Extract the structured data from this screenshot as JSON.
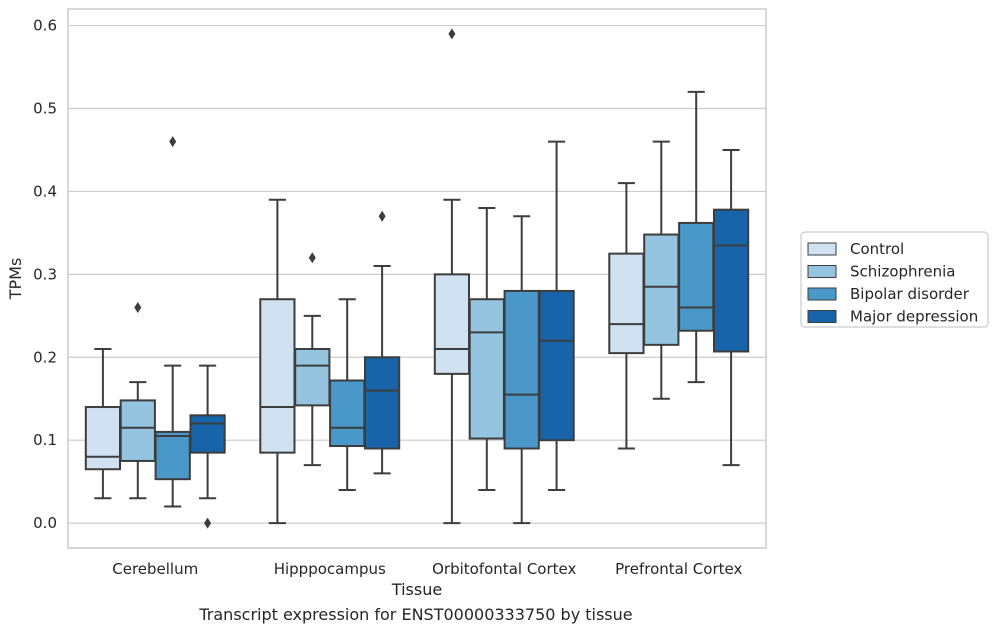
{
  "caption": "Transcript expression for ENST00000333750 by tissue",
  "chart_data": {
    "type": "box",
    "xlabel": "Tissue",
    "ylabel": "TPMs",
    "ylim": [
      -0.03,
      0.62
    ],
    "yticks": [
      0.0,
      0.1,
      0.2,
      0.3,
      0.4,
      0.5,
      0.6
    ],
    "ytick_labels": [
      "0.0",
      "0.1",
      "0.2",
      "0.3",
      "0.4",
      "0.5",
      "0.6"
    ],
    "grid": "horizontal",
    "legend_position": "right",
    "categories": [
      "Cerebellum",
      "Hipppocampus",
      "Orbitofontal Cortex",
      "Prefrontal Cortex"
    ],
    "series": [
      {
        "name": "Control",
        "color": "#d0e1f2",
        "boxes": [
          {
            "whisker_low": 0.03,
            "q1": 0.065,
            "median": 0.08,
            "q3": 0.14,
            "whisker_high": 0.21,
            "outliers": []
          },
          {
            "whisker_low": 0.0,
            "q1": 0.085,
            "median": 0.14,
            "q3": 0.27,
            "whisker_high": 0.39,
            "outliers": []
          },
          {
            "whisker_low": 0.0,
            "q1": 0.18,
            "median": 0.21,
            "q3": 0.3,
            "whisker_high": 0.39,
            "outliers": [
              0.59
            ]
          },
          {
            "whisker_low": 0.09,
            "q1": 0.205,
            "median": 0.24,
            "q3": 0.325,
            "whisker_high": 0.41,
            "outliers": []
          }
        ]
      },
      {
        "name": "Schizophrenia",
        "color": "#94c4df",
        "boxes": [
          {
            "whisker_low": 0.03,
            "q1": 0.075,
            "median": 0.115,
            "q3": 0.148,
            "whisker_high": 0.17,
            "outliers": [
              0.26
            ]
          },
          {
            "whisker_low": 0.07,
            "q1": 0.142,
            "median": 0.19,
            "q3": 0.21,
            "whisker_high": 0.25,
            "outliers": [
              0.32
            ]
          },
          {
            "whisker_low": 0.04,
            "q1": 0.102,
            "median": 0.23,
            "q3": 0.27,
            "whisker_high": 0.38,
            "outliers": []
          },
          {
            "whisker_low": 0.15,
            "q1": 0.215,
            "median": 0.285,
            "q3": 0.348,
            "whisker_high": 0.46,
            "outliers": []
          }
        ]
      },
      {
        "name": "Bipolar disorder",
        "color": "#4a98c9",
        "boxes": [
          {
            "whisker_low": 0.02,
            "q1": 0.053,
            "median": 0.105,
            "q3": 0.11,
            "whisker_high": 0.19,
            "outliers": [
              0.46
            ]
          },
          {
            "whisker_low": 0.04,
            "q1": 0.093,
            "median": 0.115,
            "q3": 0.172,
            "whisker_high": 0.27,
            "outliers": []
          },
          {
            "whisker_low": 0.0,
            "q1": 0.09,
            "median": 0.155,
            "q3": 0.28,
            "whisker_high": 0.37,
            "outliers": []
          },
          {
            "whisker_low": 0.17,
            "q1": 0.232,
            "median": 0.26,
            "q3": 0.362,
            "whisker_high": 0.52,
            "outliers": []
          }
        ]
      },
      {
        "name": "Major depression",
        "color": "#1764ab",
        "boxes": [
          {
            "whisker_low": 0.03,
            "q1": 0.085,
            "median": 0.12,
            "q3": 0.13,
            "whisker_high": 0.19,
            "outliers": [
              0.0
            ]
          },
          {
            "whisker_low": 0.06,
            "q1": 0.09,
            "median": 0.16,
            "q3": 0.2,
            "whisker_high": 0.31,
            "outliers": [
              0.37
            ]
          },
          {
            "whisker_low": 0.04,
            "q1": 0.1,
            "median": 0.22,
            "q3": 0.28,
            "whisker_high": 0.46,
            "outliers": []
          },
          {
            "whisker_low": 0.07,
            "q1": 0.207,
            "median": 0.335,
            "q3": 0.378,
            "whisker_high": 0.45,
            "outliers": []
          }
        ]
      }
    ]
  }
}
